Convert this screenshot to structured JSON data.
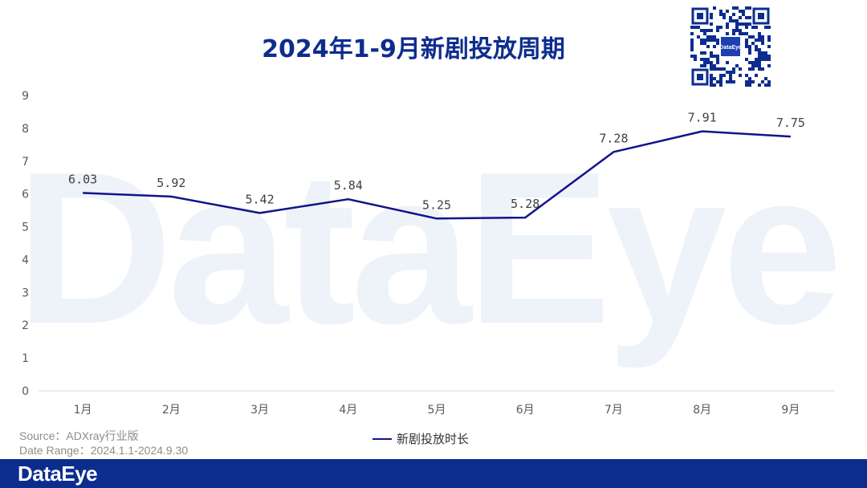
{
  "title": "2024年1-9月新剧投放周期",
  "watermark_text": "DataEye",
  "qr": {
    "label": "DataEye"
  },
  "colors": {
    "brand": "#0d2d8e",
    "line": "#101589",
    "watermark": "#eef2f9"
  },
  "chart_data": {
    "type": "line",
    "title": "2024年1-9月新剧投放周期",
    "categories": [
      "1月",
      "2月",
      "3月",
      "4月",
      "5月",
      "6月",
      "7月",
      "8月",
      "9月"
    ],
    "series": [
      {
        "name": "新剧投放时长",
        "values": [
          6.03,
          5.92,
          5.42,
          5.84,
          5.25,
          5.28,
          7.28,
          7.91,
          7.75
        ]
      }
    ],
    "data_labels": [
      "6.03",
      "5.92",
      "5.42",
      "5.84",
      "5.25",
      "5.28",
      "7.28",
      "7.91",
      "7.75"
    ],
    "yticks": [
      "0",
      "1",
      "2",
      "3",
      "4",
      "5",
      "6",
      "7",
      "8",
      "9"
    ],
    "ylim": [
      0,
      9
    ],
    "grid": false,
    "legend_position": "bottom-center"
  },
  "source": {
    "line1": "Source：ADXray行业版",
    "line2": "Date Range：2024.1.1-2024.9.30"
  },
  "legend": {
    "label": "新剧投放时长"
  },
  "footer": {
    "brand": "DataEye"
  }
}
